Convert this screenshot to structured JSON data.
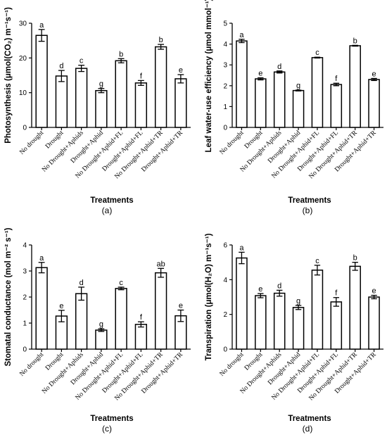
{
  "chart_data": [
    {
      "type": "bar",
      "panel_label": "(a)",
      "ylabel": "Photosynthesis (μmol(CO₂) m⁻¹s⁻¹)",
      "xlabel": "Treatments",
      "ylim": [
        0,
        30
      ],
      "yticks": [
        "0",
        "10",
        "20",
        "30"
      ],
      "categories": [
        "No drought",
        "Drought",
        "No Drought+Aphids",
        "Drought+Aphid",
        "No Drought+Aphid+FL",
        "Drought+Aphid+FL",
        "No Drought+Aphid+TR",
        "Drought+Aphid+TR"
      ],
      "values": [
        26.5,
        14.8,
        17.0,
        10.6,
        19.2,
        12.8,
        23.2,
        14.0
      ],
      "errors": [
        1.7,
        1.6,
        0.9,
        0.6,
        0.6,
        0.7,
        0.7,
        1.2
      ],
      "letters": [
        "a",
        "d",
        "c",
        "g",
        "b",
        "f",
        "b",
        "e"
      ]
    },
    {
      "type": "bar",
      "panel_label": "(b)",
      "ylabel": "Leaf water-use efficiency (μmol mmol⁻¹)",
      "xlabel": "Treatments",
      "ylim": [
        0,
        5
      ],
      "yticks": [
        "0",
        "1",
        "2",
        "3",
        "4",
        "5"
      ],
      "categories": [
        "No drought",
        "Drought",
        "No Drought+Aphids",
        "Drought+Aphid",
        "No Drought+Aphid+FL",
        "Drought+Aphid+FL",
        "No Drought+Aphid+TR",
        "Drought+Aphid+TR"
      ],
      "values": [
        4.15,
        2.33,
        2.66,
        1.77,
        3.35,
        2.06,
        3.92,
        2.3
      ],
      "errors": [
        0.08,
        0.05,
        0.05,
        0.02,
        0.02,
        0.06,
        0.02,
        0.05
      ],
      "letters": [
        "a",
        "e",
        "d",
        "g",
        "c",
        "f",
        "b",
        "e"
      ]
    },
    {
      "type": "bar",
      "panel_label": "(c)",
      "ylabel": "Stomatal conductance (mol m⁻² s⁻¹)",
      "xlabel": "Treatments",
      "ylim": [
        0,
        4
      ],
      "yticks": [
        "0",
        "1",
        "2",
        "3",
        "4"
      ],
      "categories": [
        "No drought",
        "Drought",
        "No Drought+Aphids",
        "Drought+Aphid",
        "No Drought+Aphid+FL",
        "Drought+Aphid+FL",
        "No Drought+Aphid+TR",
        "Drought+Aphid+TR"
      ],
      "values": [
        3.13,
        1.27,
        2.13,
        0.73,
        2.33,
        0.95,
        2.93,
        1.28
      ],
      "errors": [
        0.2,
        0.22,
        0.25,
        0.05,
        0.05,
        0.1,
        0.17,
        0.22
      ],
      "letters": [
        "a",
        "e",
        "d",
        "g",
        "c",
        "f",
        "ab",
        "e"
      ]
    },
    {
      "type": "bar",
      "panel_label": "(d)",
      "ylabel": "Transpiration (μmol(H₂O) m⁻¹s⁻¹)",
      "xlabel": "Treatments",
      "ylim": [
        0,
        6
      ],
      "yticks": [
        "0",
        "2",
        "4",
        "6"
      ],
      "categories": [
        "No drought",
        "Drought",
        "No Drought+Aphids",
        "Drought+Aphid",
        "No Drought+Aphid+FL",
        "Drought+Aphid+FL",
        "No Drought+Aphid+TR",
        "Drought+Aphid+TR"
      ],
      "values": [
        5.25,
        3.08,
        3.22,
        2.4,
        4.55,
        2.72,
        4.77,
        3.0
      ],
      "errors": [
        0.33,
        0.12,
        0.17,
        0.12,
        0.28,
        0.25,
        0.23,
        0.1
      ],
      "letters": [
        "a",
        "e",
        "d",
        "g",
        "c",
        "f",
        "b",
        "e"
      ]
    }
  ],
  "colors": {
    "bar_fill": "#ffffff",
    "stroke": "#000000"
  }
}
